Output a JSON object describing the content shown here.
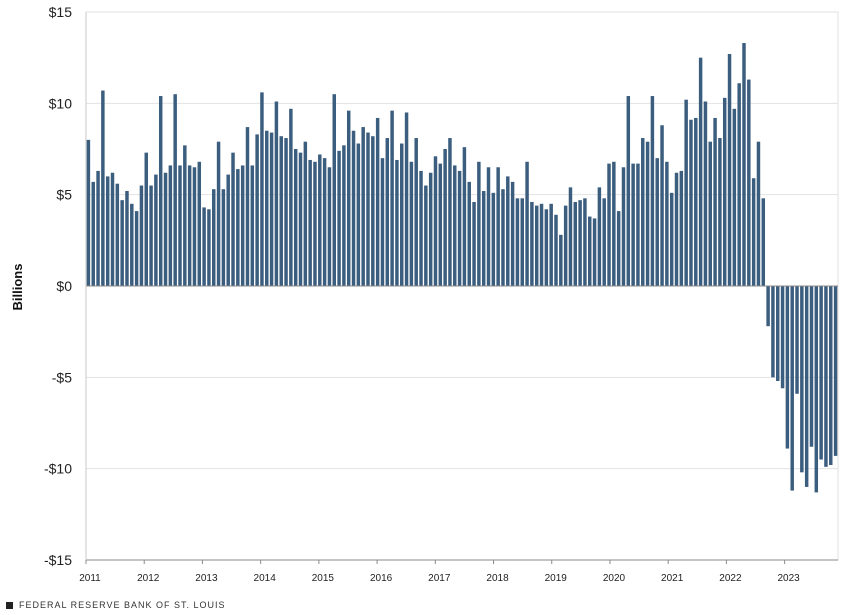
{
  "chart_data": {
    "type": "bar",
    "title": "",
    "xlabel": "",
    "ylabel": "Billions",
    "ylim": [
      -15,
      15
    ],
    "yticks": [
      15,
      10,
      5,
      0,
      -5,
      -10,
      -15
    ],
    "ytick_labels": [
      "$15",
      "$10",
      "$5",
      "$0",
      "-$5",
      "-$10",
      "-$15"
    ],
    "x_range": [
      2011,
      2023.917
    ],
    "xticks": [
      2011,
      2012,
      2013,
      2014,
      2015,
      2016,
      2017,
      2018,
      2019,
      2020,
      2021,
      2022,
      2023
    ],
    "xtick_labels": [
      "2011",
      "2012",
      "2013",
      "2014",
      "2015",
      "2016",
      "2017",
      "2018",
      "2019",
      "2020",
      "2021",
      "2022",
      "2023"
    ],
    "grid": "horizontal",
    "bar_color": "#3b5d7e",
    "series": [
      {
        "values": [
          8.0,
          5.7,
          6.3,
          10.7,
          6.0,
          6.2,
          5.6,
          4.7,
          5.2,
          4.5,
          4.1,
          5.5,
          7.3,
          5.5,
          6.1,
          10.4,
          6.2,
          6.6,
          10.5,
          6.6,
          7.7,
          6.6,
          6.5,
          6.8,
          4.3,
          4.2,
          5.3,
          7.9,
          5.3,
          6.1,
          7.3,
          6.4,
          6.6,
          8.7,
          6.6,
          8.3,
          10.6,
          8.5,
          8.4,
          10.1,
          8.2,
          8.1,
          9.7,
          7.5,
          7.3,
          7.9,
          6.9,
          6.8,
          7.2,
          7.0,
          6.5,
          10.5,
          7.4,
          7.7,
          9.6,
          8.5,
          7.8,
          8.7,
          8.4,
          8.2,
          9.2,
          7.0,
          8.1,
          9.6,
          6.9,
          7.8,
          9.5,
          6.8,
          8.1,
          6.3,
          5.5,
          6.2,
          7.1,
          6.7,
          7.5,
          8.1,
          6.6,
          6.3,
          7.6,
          5.7,
          4.6,
          6.8,
          5.2,
          6.5,
          5.1,
          6.5,
          5.3,
          6.0,
          5.7,
          4.8,
          4.8,
          6.8,
          4.6,
          4.4,
          4.5,
          4.2,
          4.5,
          3.9,
          2.8,
          4.4,
          5.4,
          4.6,
          4.7,
          4.8,
          3.8,
          3.7,
          5.4,
          4.8,
          6.7,
          6.8,
          4.1,
          6.5,
          10.4,
          6.7,
          6.7,
          8.1,
          7.9,
          10.4,
          7.0,
          8.8,
          6.8,
          5.1,
          6.2,
          6.3,
          10.2,
          9.1,
          9.2,
          12.5,
          10.1,
          7.9,
          9.2,
          8.1,
          10.3,
          12.7,
          9.7,
          11.1,
          13.3,
          11.3,
          5.9,
          7.9,
          4.8,
          -2.2,
          -5.0,
          -5.2,
          -5.6,
          -8.9,
          -11.2,
          -5.9,
          -10.2,
          -11.0,
          -8.8,
          -11.3,
          -9.5,
          -9.9,
          -9.8,
          -9.3
        ]
      }
    ]
  },
  "footer": {
    "source_label": "FEDERAL RESERVE BANK OF ST. LOUIS"
  }
}
